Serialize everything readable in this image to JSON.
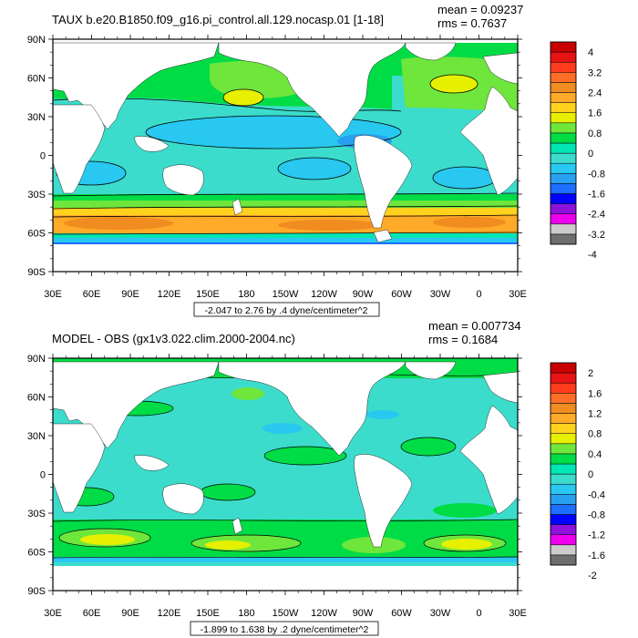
{
  "panels": [
    {
      "title": "TAUX b.e20.B1850.f09_g16.pi_control.all.129.nocasp.01 [1-18]",
      "mean_text": "mean = 0.09237",
      "rms_text": "rms = 0.7637",
      "info_box": "-2.047 to 2.76 by .4 dyne/centimeter^2",
      "colorbar_labels": [
        "4",
        "3.2",
        "2.4",
        "1.6",
        "0.8",
        "0",
        "-0.8",
        "-1.6",
        "-2.4",
        "-3.2",
        "-4"
      ]
    },
    {
      "title": "MODEL - OBS (gx1v3.022.clim.2000-2004.nc)",
      "mean_text": "mean = 0.007734",
      "rms_text": "rms = 0.1684",
      "info_box": "-1.899 to 1.638 by .2 dyne/centimeter^2",
      "colorbar_labels": [
        "2",
        "1.6",
        "1.2",
        "0.8",
        "0.4",
        "0",
        "-0.4",
        "-0.8",
        "-1.2",
        "-1.6",
        "-2"
      ]
    }
  ],
  "lat_labels": [
    "90N",
    "60N",
    "30N",
    "0",
    "30S",
    "60S",
    "90S"
  ],
  "lon_labels": [
    "30E",
    "60E",
    "90E",
    "120E",
    "150E",
    "180",
    "150W",
    "120W",
    "90W",
    "60W",
    "30W",
    "0",
    "30E"
  ],
  "colors": {
    "palette": [
      "#6e6e6e",
      "#cccccc",
      "#ee00ee",
      "#8e12dc",
      "#0000ff",
      "#1e6eff",
      "#28a0f0",
      "#28c8f0",
      "#3cdccc",
      "#00e6b4",
      "#00dc46",
      "#6ee63c",
      "#e6f000",
      "#ffd21e",
      "#ffaa28",
      "#f08c20",
      "#ff6e28",
      "#ff3c1e",
      "#e61414",
      "#c80000"
    ],
    "land": "#ffffff"
  }
}
